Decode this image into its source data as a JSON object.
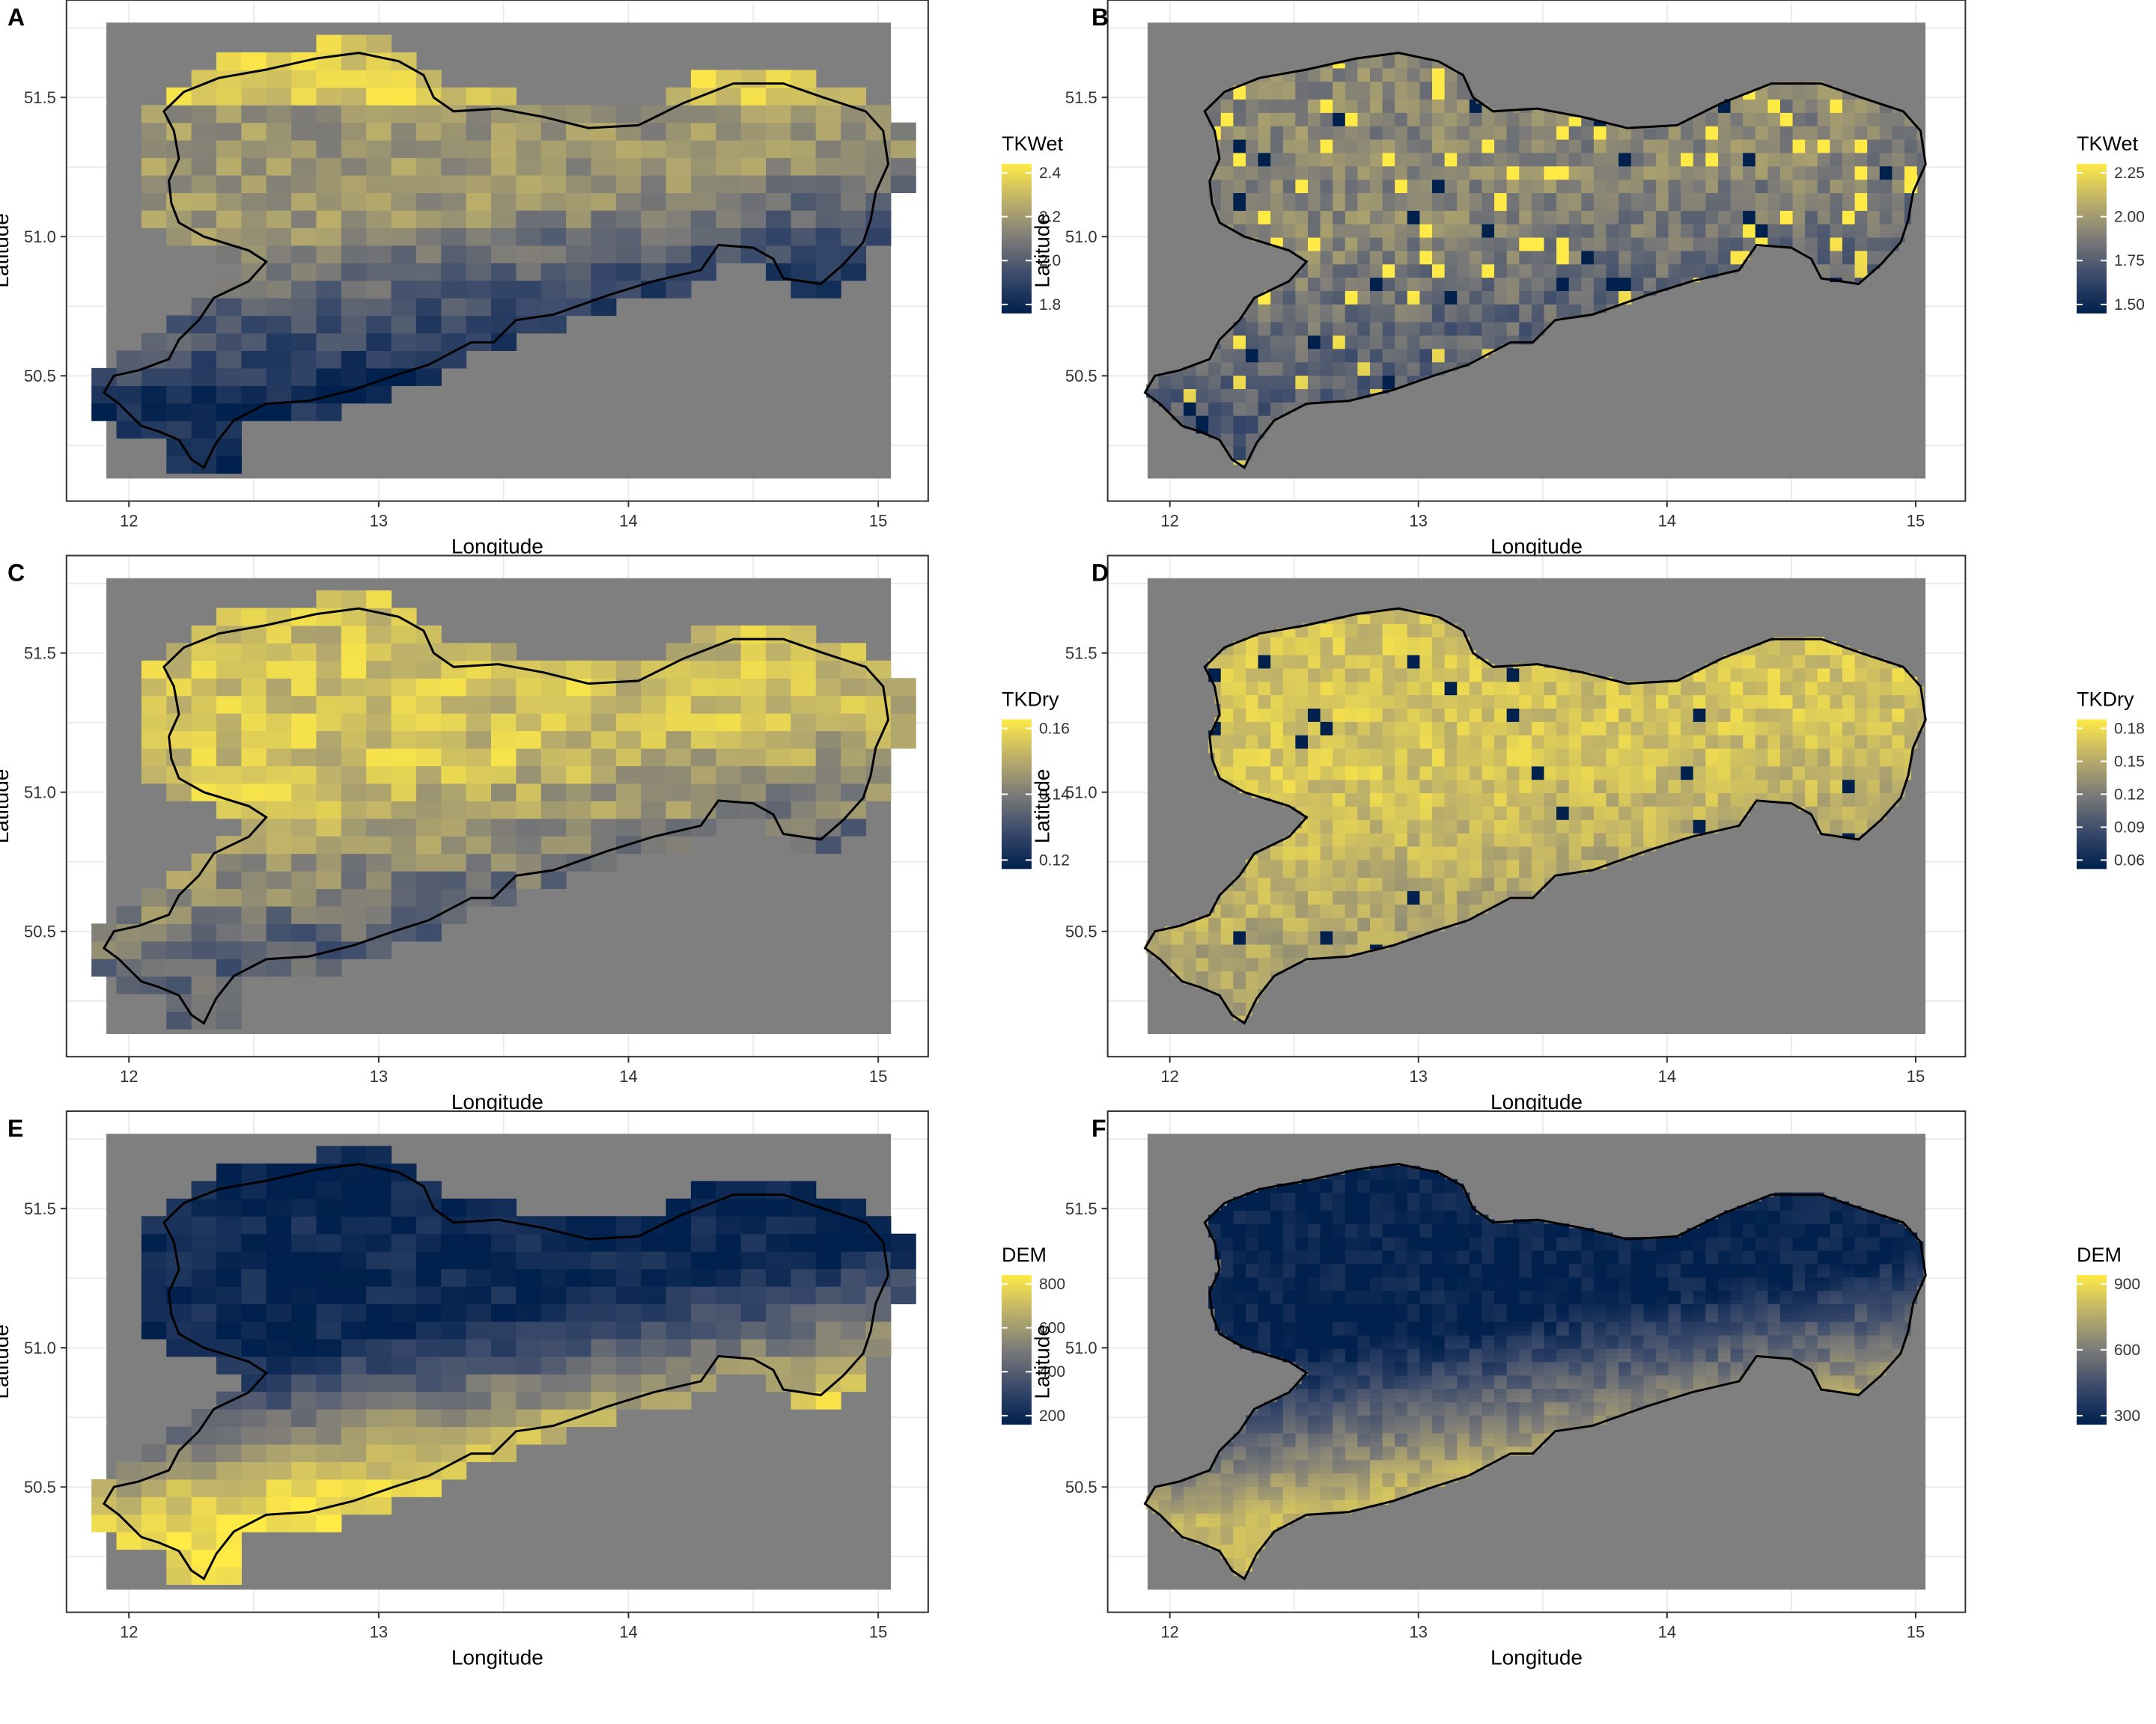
{
  "colors": {
    "raster_background": "#7f7f7f",
    "panel_frame": "#333333",
    "grid": "#ebebeb",
    "boundary": "#000000",
    "scale_low": "#00204d",
    "scale_mid": "#7c7b78",
    "scale_high": "#ffea46"
  },
  "x_axis": {
    "label": "Longitude",
    "ticks": [
      "12",
      "13",
      "14",
      "15"
    ],
    "range": [
      11.75,
      15.2
    ]
  },
  "y_axis": {
    "label": "Latitude",
    "ticks": [
      "50.5",
      "51.0",
      "51.5"
    ],
    "range": [
      50.05,
      51.85
    ]
  },
  "panels": [
    {
      "letter": "A",
      "raster": "coarse-grid",
      "legend": {
        "title": "TKWet",
        "ticks": [
          "2.4",
          "2.2",
          "2.0",
          "1.8"
        ]
      }
    },
    {
      "letter": "B",
      "raster": "fine-soil-map",
      "legend": {
        "title": "TKWet",
        "ticks": [
          "2.25",
          "2.00",
          "1.75",
          "1.50"
        ]
      }
    },
    {
      "letter": "C",
      "raster": "coarse-grid",
      "legend": {
        "title": "TKDry",
        "ticks": [
          "0.16",
          "0.14",
          "0.12"
        ]
      }
    },
    {
      "letter": "D",
      "raster": "fine-soil-map",
      "legend": {
        "title": "TKDry",
        "ticks": [
          "0.18",
          "0.15",
          "0.12",
          "0.09",
          "0.06"
        ]
      }
    },
    {
      "letter": "E",
      "raster": "coarse-grid",
      "legend": {
        "title": "DEM",
        "ticks": [
          "800",
          "600",
          "400",
          "200"
        ]
      }
    },
    {
      "letter": "F",
      "raster": "fine-elevation",
      "legend": {
        "title": "DEM",
        "ticks": [
          "900",
          "600",
          "300"
        ]
      }
    }
  ]
}
